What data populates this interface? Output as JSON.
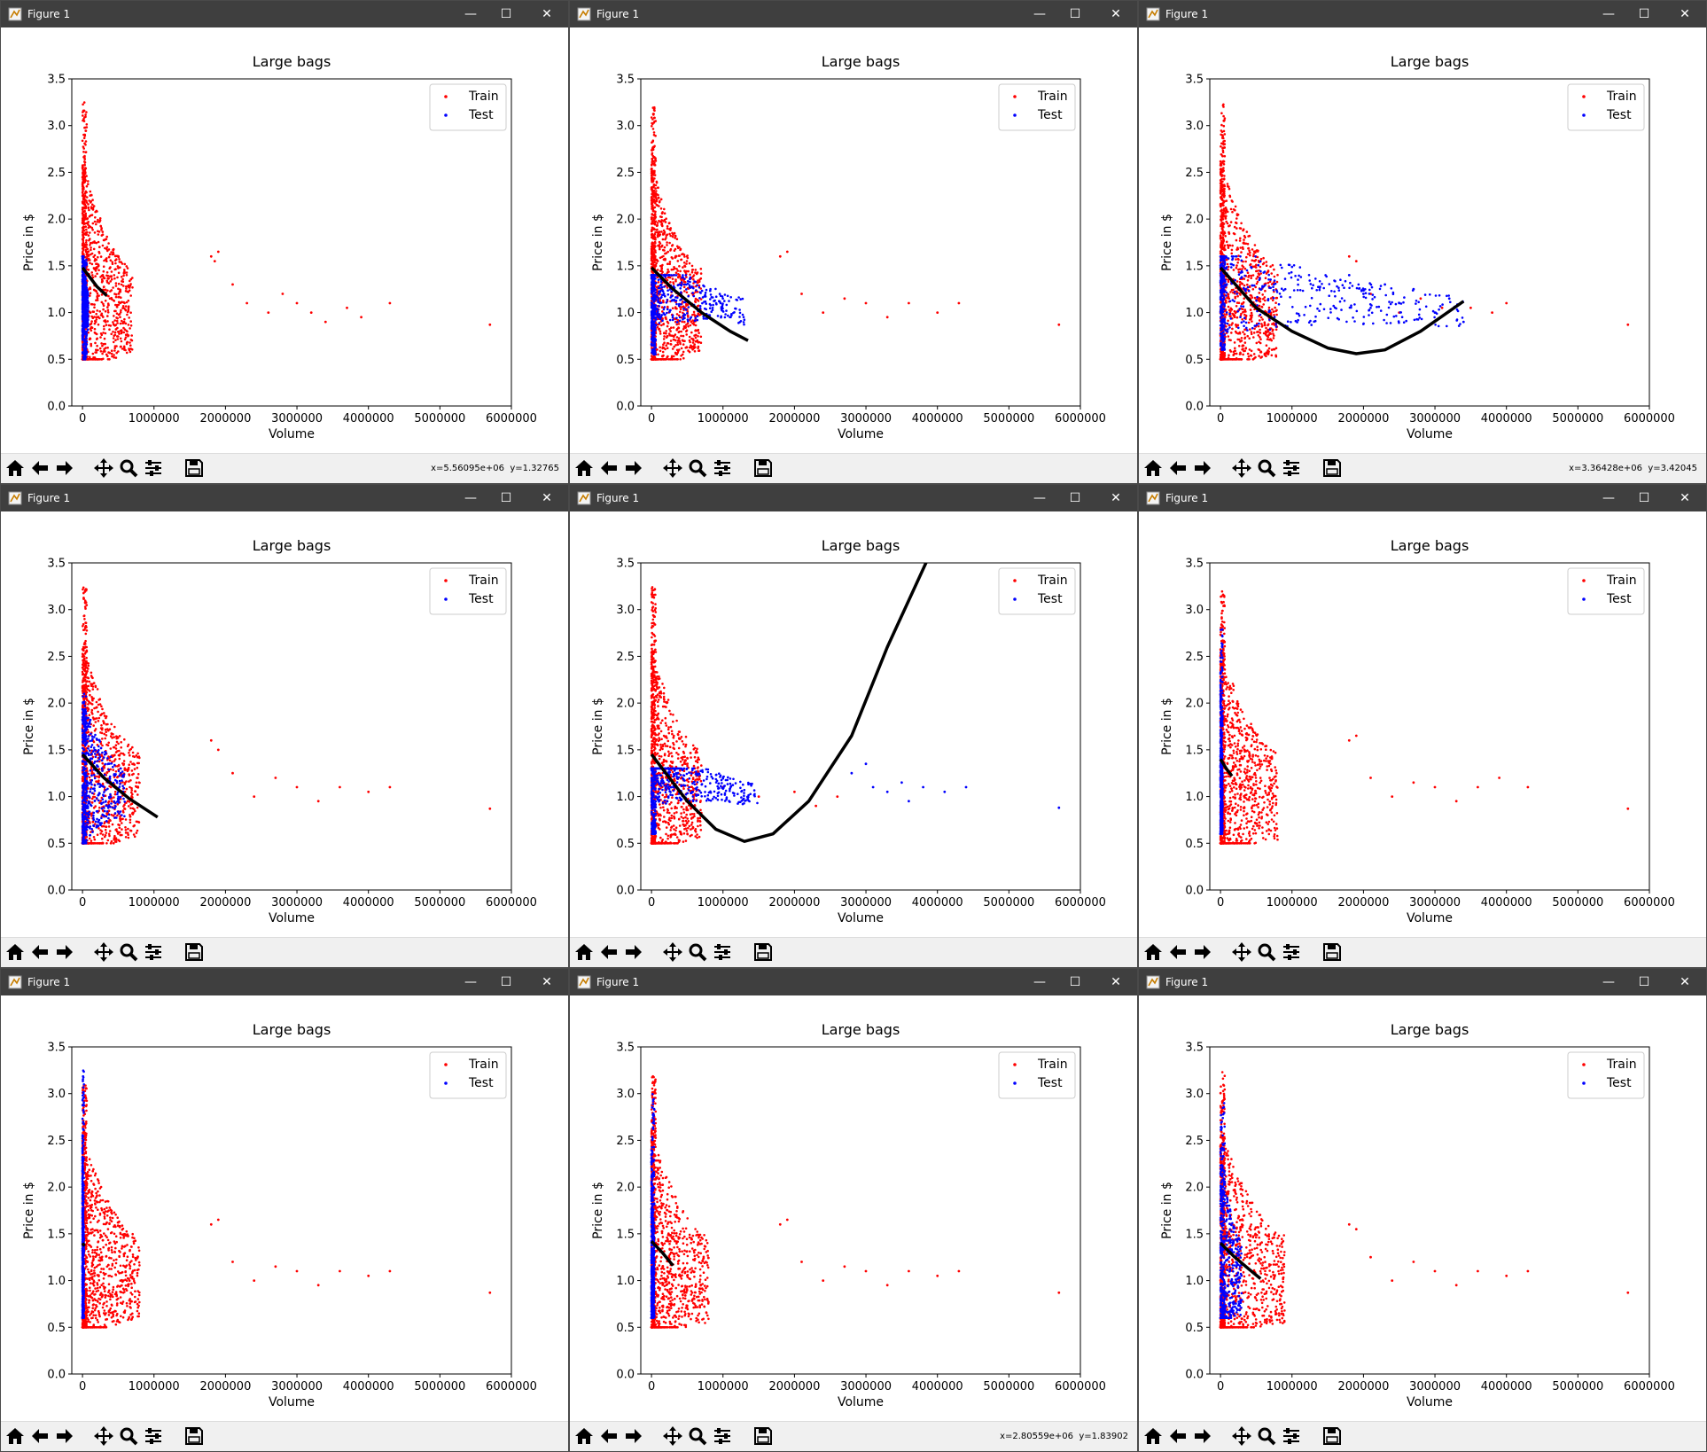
{
  "window_title": "Figure 1",
  "window_controls": {
    "minimize": "—",
    "maximize": "☐",
    "close": "✕"
  },
  "toolbar_icons": [
    "home-icon",
    "back-arrow-icon",
    "forward-arrow-icon",
    "pan-icon",
    "zoom-icon",
    "configure-subplots-icon",
    "save-icon"
  ],
  "colors": {
    "train": "#ff0000",
    "test": "#0000ff",
    "fit": "#000000",
    "titlebar": "#3f3f3f"
  },
  "shared_axes": {
    "title": "Large bags",
    "xlabel": "Volume",
    "ylabel": "Price in $",
    "xlim": [
      -150000,
      6000000
    ],
    "ylim": [
      0,
      3.5
    ],
    "xticks": [
      0,
      1000000,
      2000000,
      3000000,
      4000000,
      5000000,
      6000000
    ],
    "xtick_labels": [
      "0",
      "1000000",
      "2000000",
      "3000000",
      "4000000",
      "5000000",
      "6000000"
    ],
    "yticks": [
      0,
      0.5,
      1.0,
      1.5,
      2.0,
      2.5,
      3.0,
      3.5
    ],
    "ytick_labels": [
      "0.0",
      "0.5",
      "1.0",
      "1.5",
      "2.0",
      "2.5",
      "3.0",
      "3.5"
    ],
    "legend": [
      "Train",
      "Test"
    ],
    "legend_position": "top-right"
  },
  "windows": [
    {
      "coords": "x=5.56095e+06  y=1.32765"
    },
    {
      "coords": ""
    },
    {
      "coords": "x=3.36428e+06  y=3.42045"
    },
    {
      "coords": ""
    },
    {
      "coords": ""
    },
    {
      "coords": ""
    },
    {
      "coords": ""
    },
    {
      "coords": "x=2.80559e+06  y=1.83902"
    },
    {
      "coords": ""
    }
  ],
  "chart_data": [
    {
      "type": "scatter",
      "title": "Large bags",
      "xlabel": "Volume",
      "ylabel": "Price in $",
      "xlim": [
        -150000,
        6000000
      ],
      "ylim": [
        0,
        3.5
      ],
      "series": [
        {
          "name": "Train",
          "color": "#ff0000",
          "cluster_x": [
            0,
            700000
          ],
          "cluster_y": [
            0.5,
            3.25
          ],
          "points": [
            [
              1800000,
              1.6
            ],
            [
              1850000,
              1.55
            ],
            [
              1900000,
              1.65
            ],
            [
              2100000,
              1.3
            ],
            [
              2300000,
              1.1
            ],
            [
              2600000,
              1.0
            ],
            [
              2800000,
              1.2
            ],
            [
              3000000,
              1.1
            ],
            [
              3200000,
              1.0
            ],
            [
              3400000,
              0.9
            ],
            [
              3700000,
              1.05
            ],
            [
              3900000,
              0.95
            ],
            [
              4300000,
              1.1
            ],
            [
              5700000,
              0.87
            ]
          ]
        },
        {
          "name": "Test",
          "color": "#0000ff",
          "cluster_x": [
            0,
            80000
          ],
          "cluster_y": [
            0.5,
            1.6
          ],
          "points": []
        }
      ],
      "fit_curve": [
        [
          0,
          1.48
        ],
        [
          100000,
          1.38
        ],
        [
          200000,
          1.28
        ],
        [
          340000,
          1.18
        ]
      ]
    },
    {
      "type": "scatter",
      "title": "Large bags",
      "xlabel": "Volume",
      "ylabel": "Price in $",
      "xlim": [
        -150000,
        6000000
      ],
      "ylim": [
        0,
        3.5
      ],
      "series": [
        {
          "name": "Train",
          "color": "#ff0000",
          "cluster_x": [
            0,
            700000
          ],
          "cluster_y": [
            0.5,
            3.2
          ],
          "points": [
            [
              1800000,
              1.6
            ],
            [
              1900000,
              1.65
            ],
            [
              2100000,
              1.2
            ],
            [
              2400000,
              1.0
            ],
            [
              2700000,
              1.15
            ],
            [
              3000000,
              1.1
            ],
            [
              3300000,
              0.95
            ],
            [
              3600000,
              1.1
            ],
            [
              4000000,
              1.0
            ],
            [
              4300000,
              1.1
            ],
            [
              5700000,
              0.87
            ]
          ]
        },
        {
          "name": "Test",
          "color": "#0000ff",
          "cluster_x": [
            0,
            1300000
          ],
          "cluster_y": [
            0.55,
            1.4
          ],
          "points": []
        }
      ],
      "fit_curve": [
        [
          0,
          1.48
        ],
        [
          300000,
          1.25
        ],
        [
          700000,
          1.0
        ],
        [
          1100000,
          0.8
        ],
        [
          1350000,
          0.7
        ]
      ]
    },
    {
      "type": "scatter",
      "title": "Large bags",
      "xlabel": "Volume",
      "ylabel": "Price in $",
      "xlim": [
        -150000,
        6000000
      ],
      "ylim": [
        0,
        3.5
      ],
      "series": [
        {
          "name": "Train",
          "color": "#ff0000",
          "cluster_x": [
            0,
            800000
          ],
          "cluster_y": [
            0.5,
            3.25
          ],
          "points": [
            [
              1800000,
              1.6
            ],
            [
              1900000,
              1.55
            ],
            [
              2100000,
              1.2
            ],
            [
              2500000,
              1.0
            ],
            [
              2800000,
              1.15
            ],
            [
              3100000,
              1.05
            ],
            [
              3500000,
              1.05
            ],
            [
              3800000,
              1.0
            ],
            [
              4000000,
              1.1
            ],
            [
              5700000,
              0.87
            ]
          ]
        },
        {
          "name": "Test",
          "color": "#0000ff",
          "cluster_x": [
            0,
            3400000
          ],
          "cluster_y": [
            0.6,
            1.6
          ],
          "points": [
            [
              1800000,
              1.4
            ],
            [
              2000000,
              1.2
            ],
            [
              2300000,
              1.3
            ],
            [
              2500000,
              1.1
            ],
            [
              2700000,
              1.25
            ],
            [
              3000000,
              1.0
            ],
            [
              3200000,
              1.15
            ],
            [
              3400000,
              0.9
            ]
          ]
        }
      ],
      "fit_curve": [
        [
          0,
          1.48
        ],
        [
          500000,
          1.05
        ],
        [
          1000000,
          0.8
        ],
        [
          1500000,
          0.62
        ],
        [
          1900000,
          0.56
        ],
        [
          2300000,
          0.6
        ],
        [
          2800000,
          0.8
        ],
        [
          3400000,
          1.12
        ]
      ]
    },
    {
      "type": "scatter",
      "title": "Large bags",
      "xlabel": "Volume",
      "ylabel": "Price in $",
      "xlim": [
        -150000,
        6000000
      ],
      "ylim": [
        0,
        3.5
      ],
      "series": [
        {
          "name": "Train",
          "color": "#ff0000",
          "cluster_x": [
            0,
            800000
          ],
          "cluster_y": [
            0.5,
            3.25
          ],
          "points": [
            [
              1800000,
              1.6
            ],
            [
              1900000,
              1.5
            ],
            [
              2100000,
              1.25
            ],
            [
              2400000,
              1.0
            ],
            [
              2700000,
              1.2
            ],
            [
              3000000,
              1.1
            ],
            [
              3300000,
              0.95
            ],
            [
              3600000,
              1.1
            ],
            [
              4000000,
              1.05
            ],
            [
              4300000,
              1.1
            ],
            [
              5700000,
              0.87
            ]
          ]
        },
        {
          "name": "Test",
          "color": "#0000ff",
          "cluster_x": [
            0,
            600000
          ],
          "cluster_y": [
            0.5,
            2.1
          ],
          "points": []
        }
      ],
      "fit_curve": [
        [
          0,
          1.45
        ],
        [
          300000,
          1.2
        ],
        [
          650000,
          0.98
        ],
        [
          1050000,
          0.78
        ]
      ]
    },
    {
      "type": "scatter",
      "title": "Large bags",
      "xlabel": "Volume",
      "ylabel": "Price in $",
      "xlim": [
        -150000,
        6000000
      ],
      "ylim": [
        0,
        3.5
      ],
      "series": [
        {
          "name": "Train",
          "color": "#ff0000",
          "cluster_x": [
            0,
            700000
          ],
          "cluster_y": [
            0.5,
            3.25
          ],
          "points": [
            [
              1000000,
              1.1
            ],
            [
              1500000,
              1.0
            ],
            [
              2000000,
              1.05
            ],
            [
              2300000,
              0.9
            ],
            [
              2600000,
              1.0
            ]
          ]
        },
        {
          "name": "Test",
          "color": "#0000ff",
          "cluster_x": [
            0,
            1500000
          ],
          "cluster_y": [
            0.6,
            1.3
          ],
          "points": [
            [
              2800000,
              1.25
            ],
            [
              3000000,
              1.35
            ],
            [
              3100000,
              1.1
            ],
            [
              3300000,
              1.05
            ],
            [
              3500000,
              1.15
            ],
            [
              3600000,
              0.95
            ],
            [
              3800000,
              1.1
            ],
            [
              4100000,
              1.05
            ],
            [
              4400000,
              1.1
            ],
            [
              5700000,
              0.88
            ]
          ]
        }
      ],
      "fit_curve": [
        [
          0,
          1.45
        ],
        [
          500000,
          0.95
        ],
        [
          900000,
          0.65
        ],
        [
          1300000,
          0.52
        ],
        [
          1700000,
          0.6
        ],
        [
          2200000,
          0.95
        ],
        [
          2800000,
          1.65
        ],
        [
          3300000,
          2.6
        ],
        [
          3900000,
          3.6
        ]
      ]
    },
    {
      "type": "scatter",
      "title": "Large bags",
      "xlabel": "Volume",
      "ylabel": "Price in $",
      "xlim": [
        -150000,
        6000000
      ],
      "ylim": [
        0,
        3.5
      ],
      "series": [
        {
          "name": "Train",
          "color": "#ff0000",
          "cluster_x": [
            0,
            800000
          ],
          "cluster_y": [
            0.5,
            3.2
          ],
          "points": [
            [
              1800000,
              1.6
            ],
            [
              1900000,
              1.65
            ],
            [
              2100000,
              1.2
            ],
            [
              2400000,
              1.0
            ],
            [
              2700000,
              1.15
            ],
            [
              3000000,
              1.1
            ],
            [
              3300000,
              0.95
            ],
            [
              3600000,
              1.1
            ],
            [
              3900000,
              1.2
            ],
            [
              4300000,
              1.1
            ],
            [
              5700000,
              0.87
            ]
          ]
        },
        {
          "name": "Test",
          "color": "#0000ff",
          "cluster_x": [
            0,
            30000
          ],
          "cluster_y": [
            0.6,
            2.8
          ],
          "points": []
        }
      ],
      "fit_curve": [
        [
          0,
          1.4
        ],
        [
          80000,
          1.3
        ],
        [
          160000,
          1.22
        ]
      ]
    },
    {
      "type": "scatter",
      "title": "Large bags",
      "xlabel": "Volume",
      "ylabel": "Price in $",
      "xlim": [
        -150000,
        6000000
      ],
      "ylim": [
        0,
        3.5
      ],
      "series": [
        {
          "name": "Train",
          "color": "#ff0000",
          "cluster_x": [
            0,
            800000
          ],
          "cluster_y": [
            0.5,
            3.1
          ],
          "points": [
            [
              1800000,
              1.6
            ],
            [
              1900000,
              1.65
            ],
            [
              2100000,
              1.2
            ],
            [
              2400000,
              1.0
            ],
            [
              2700000,
              1.15
            ],
            [
              3000000,
              1.1
            ],
            [
              3300000,
              0.95
            ],
            [
              3600000,
              1.1
            ],
            [
              4000000,
              1.05
            ],
            [
              4300000,
              1.1
            ],
            [
              5700000,
              0.87
            ]
          ]
        },
        {
          "name": "Test",
          "color": "#0000ff",
          "cluster_x": [
            0,
            20000
          ],
          "cluster_y": [
            0.6,
            3.25
          ],
          "points": []
        }
      ],
      "fit_curve": [
        [
          0,
          1.4
        ],
        [
          30000,
          1.37
        ]
      ]
    },
    {
      "type": "scatter",
      "title": "Large bags",
      "xlabel": "Volume",
      "ylabel": "Price in $",
      "xlim": [
        -150000,
        6000000
      ],
      "ylim": [
        0,
        3.5
      ],
      "series": [
        {
          "name": "Train",
          "color": "#ff0000",
          "cluster_x": [
            0,
            800000
          ],
          "cluster_y": [
            0.5,
            3.2
          ],
          "points": [
            [
              1800000,
              1.6
            ],
            [
              1900000,
              1.65
            ],
            [
              2100000,
              1.2
            ],
            [
              2400000,
              1.0
            ],
            [
              2700000,
              1.15
            ],
            [
              3000000,
              1.1
            ],
            [
              3300000,
              0.95
            ],
            [
              3600000,
              1.1
            ],
            [
              4000000,
              1.05
            ],
            [
              4300000,
              1.1
            ],
            [
              5700000,
              0.87
            ]
          ]
        },
        {
          "name": "Test",
          "color": "#0000ff",
          "cluster_x": [
            0,
            40000
          ],
          "cluster_y": [
            0.6,
            3.0
          ],
          "points": []
        }
      ],
      "fit_curve": [
        [
          0,
          1.42
        ],
        [
          150000,
          1.3
        ],
        [
          300000,
          1.16
        ]
      ]
    },
    {
      "type": "scatter",
      "title": "Large bags",
      "xlabel": "Volume",
      "ylabel": "Price in $",
      "xlim": [
        -150000,
        6000000
      ],
      "ylim": [
        0,
        3.5
      ],
      "series": [
        {
          "name": "Train",
          "color": "#ff0000",
          "cluster_x": [
            0,
            900000
          ],
          "cluster_y": [
            0.5,
            3.25
          ],
          "points": [
            [
              1800000,
              1.6
            ],
            [
              1900000,
              1.55
            ],
            [
              2100000,
              1.25
            ],
            [
              2400000,
              1.0
            ],
            [
              2700000,
              1.2
            ],
            [
              3000000,
              1.1
            ],
            [
              3300000,
              0.95
            ],
            [
              3600000,
              1.1
            ],
            [
              4000000,
              1.05
            ],
            [
              4300000,
              1.1
            ],
            [
              5700000,
              0.87
            ]
          ]
        },
        {
          "name": "Test",
          "color": "#0000ff",
          "cluster_x": [
            0,
            300000
          ],
          "cluster_y": [
            0.6,
            2.9
          ],
          "points": []
        }
      ],
      "fit_curve": [
        [
          0,
          1.4
        ],
        [
          200000,
          1.25
        ],
        [
          400000,
          1.12
        ],
        [
          560000,
          1.02
        ]
      ]
    }
  ]
}
